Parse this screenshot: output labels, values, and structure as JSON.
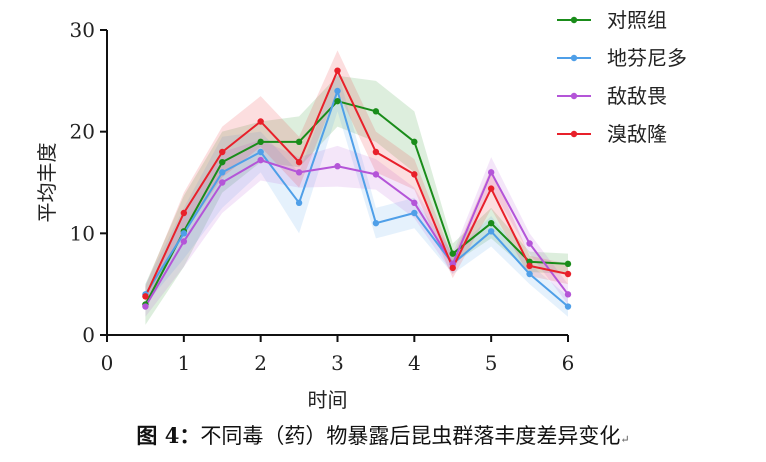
{
  "caption": {
    "prefix": "图 4：",
    "text": "不同毒（药）物暴露后昆虫群落丰度差异变化",
    "mark": "↵"
  },
  "chart_data": {
    "type": "line",
    "xlabel": "时间",
    "ylabel": "平均丰度",
    "xlim": [
      0,
      6
    ],
    "ylim": [
      0,
      30
    ],
    "x_ticks": [
      0,
      1,
      2,
      3,
      4,
      5,
      6
    ],
    "y_ticks": [
      0,
      10,
      20,
      30
    ],
    "grid": false,
    "legend_position": "top-right",
    "x": [
      0.5,
      1,
      1.5,
      2,
      2.5,
      3,
      3.5,
      4,
      4.5,
      5,
      5.5,
      6
    ],
    "series": [
      {
        "name": "对照组",
        "color": "#1a8c1a",
        "values": [
          3,
          10.2,
          17,
          19,
          19,
          23,
          22,
          19,
          8,
          11,
          7.2,
          7
        ],
        "band": [
          2,
          3.5,
          3,
          2,
          2.5,
          2.5,
          3,
          3,
          1,
          1.5,
          1,
          1
        ]
      },
      {
        "name": "地芬尼多",
        "color": "#4f9fe8",
        "values": [
          4,
          10,
          16,
          18,
          13,
          24,
          11,
          12,
          7,
          10.2,
          6,
          2.8
        ],
        "band": [
          1,
          2.5,
          3.5,
          2,
          3,
          2,
          1.5,
          1.5,
          1,
          1.5,
          1,
          1
        ]
      },
      {
        "name": "敌敌畏",
        "color": "#b455d8",
        "values": [
          2.8,
          9.2,
          15,
          17.2,
          16,
          16.6,
          15.8,
          13,
          7,
          16,
          9,
          4
        ],
        "band": [
          1,
          2.5,
          3,
          2,
          1.5,
          2,
          1.5,
          1.5,
          1,
          1.5,
          1,
          1
        ]
      },
      {
        "name": "溴敌隆",
        "color": "#e8202a",
        "values": [
          3.8,
          12,
          18,
          21,
          17,
          26,
          18,
          15.8,
          6.6,
          14.4,
          6.8,
          6
        ],
        "band": [
          1,
          2,
          2.5,
          2.5,
          2.5,
          2,
          2,
          1.5,
          1,
          2,
          1,
          1
        ]
      }
    ]
  }
}
